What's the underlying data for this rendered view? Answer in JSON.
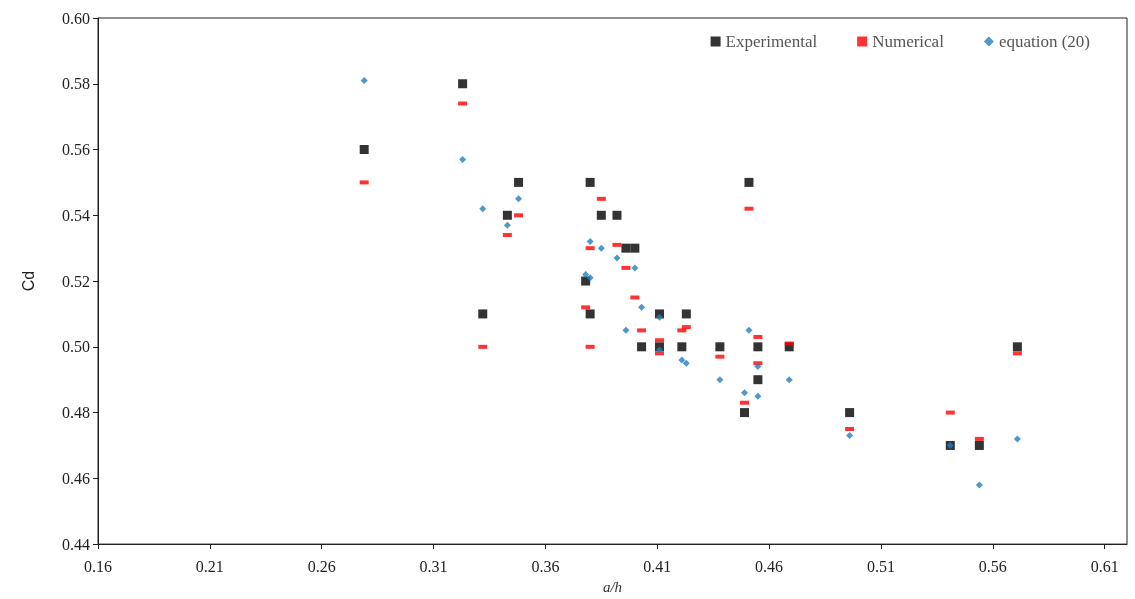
{
  "chart_data": {
    "type": "scatter",
    "xlabel": "a/h",
    "ylabel": "Cd",
    "x": [
      0.279,
      0.323,
      0.332,
      0.343,
      0.348,
      0.378,
      0.38,
      0.38,
      0.385,
      0.392,
      0.396,
      0.4,
      0.403,
      0.411,
      0.411,
      0.421,
      0.423,
      0.438,
      0.449,
      0.451,
      0.455,
      0.455,
      0.469,
      0.496,
      0.541,
      0.554,
      0.571
    ],
    "series": [
      {
        "name": "Experimental",
        "color": "#000000",
        "marker": "square",
        "values": [
          0.56,
          0.58,
          0.51,
          0.54,
          0.55,
          0.52,
          0.55,
          0.51,
          0.54,
          0.54,
          0.53,
          0.53,
          0.5,
          0.51,
          0.5,
          0.5,
          0.51,
          0.5,
          0.48,
          0.55,
          0.49,
          0.5,
          0.5,
          0.48,
          0.47,
          0.47,
          0.5
        ]
      },
      {
        "name": "Numerical",
        "color": "#ff0000",
        "values": [
          0.55,
          0.574,
          0.5,
          0.534,
          0.54,
          0.512,
          0.53,
          0.5,
          0.545,
          0.531,
          0.524,
          0.515,
          0.505,
          0.502,
          0.498,
          0.505,
          0.506,
          0.497,
          0.483,
          0.542,
          0.495,
          0.503,
          0.501,
          0.475,
          0.48,
          0.472,
          0.498
        ]
      },
      {
        "name": "equation (20)",
        "color": "#1f7fbf",
        "marker": "diamond",
        "values": [
          0.581,
          0.557,
          0.542,
          0.537,
          0.545,
          0.522,
          0.532,
          0.521,
          0.53,
          0.527,
          0.505,
          0.524,
          0.512,
          0.509,
          0.499,
          0.496,
          0.495,
          0.49,
          0.486,
          0.505,
          0.494,
          0.485,
          0.49,
          0.473,
          0.47,
          0.458,
          0.472
        ]
      }
    ],
    "xlim": [
      0.16,
      0.62
    ],
    "xticks": [
      0.16,
      0.21,
      0.26,
      0.31,
      0.36,
      0.41,
      0.46,
      0.51,
      0.56,
      0.61
    ],
    "ylim": [
      0.44,
      0.6
    ],
    "yticks": [
      0.44,
      0.46,
      0.48,
      {
        "value": 0.5,
        "label": "0.50"
      },
      0.52,
      0.54,
      0.56,
      0.58,
      {
        "value": 0.6,
        "label": "0.60"
      }
    ],
    "grid": false,
    "legend": "top right"
  }
}
